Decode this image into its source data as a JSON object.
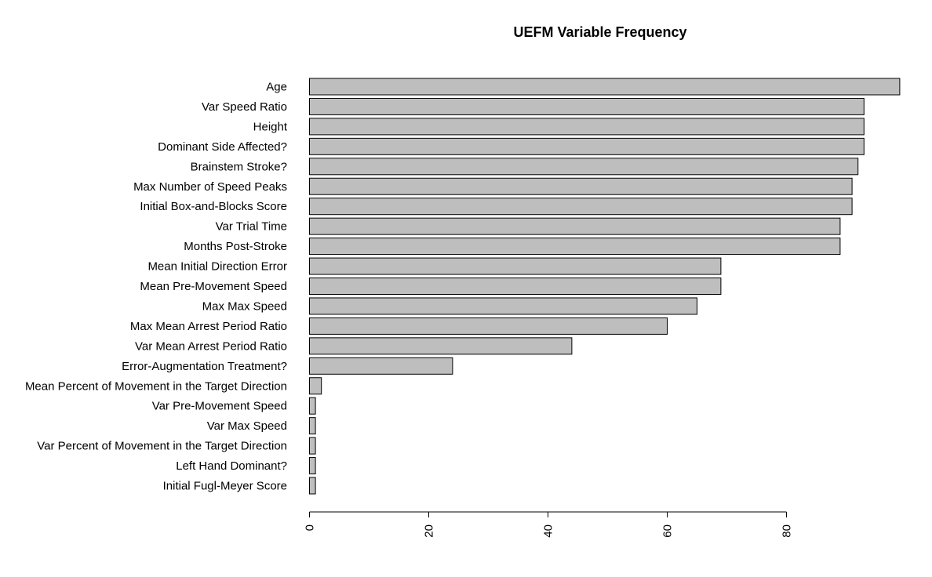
{
  "chart_data": {
    "type": "bar",
    "orientation": "horizontal",
    "title": "UEFM Variable Frequency",
    "xlabel": "",
    "ylabel": "",
    "categories": [
      "Age",
      "Var Speed Ratio",
      "Height",
      "Dominant Side Affected?",
      "Brainstem Stroke?",
      "Max Number of Speed Peaks",
      "Initial Box-and-Blocks Score",
      "Var Trial Time",
      "Months Post-Stroke",
      "Mean Initial Direction Error",
      "Mean Pre-Movement Speed",
      "Max Max Speed",
      "Max Mean Arrest Period Ratio",
      "Var Mean Arrest Period Ratio",
      "Error-Augmentation Treatment?",
      "Mean Percent of Movement in the Target Direction",
      "Var Pre-Movement Speed",
      "Var Max Speed",
      "Var Percent of Movement in the Target Direction",
      "Left Hand Dominant?",
      "Initial Fugl-Meyer Score"
    ],
    "values": [
      99,
      93,
      93,
      93,
      92,
      91,
      91,
      89,
      89,
      69,
      69,
      65,
      60,
      44,
      24,
      2,
      1,
      1,
      1,
      1,
      1
    ],
    "x_ticks": [
      "0",
      "20",
      "40",
      "60",
      "80"
    ],
    "xlim": [
      0,
      100
    ],
    "grid": false,
    "legend": "none",
    "bar_color": "#bebebe",
    "bar_border_color": "#000000"
  }
}
